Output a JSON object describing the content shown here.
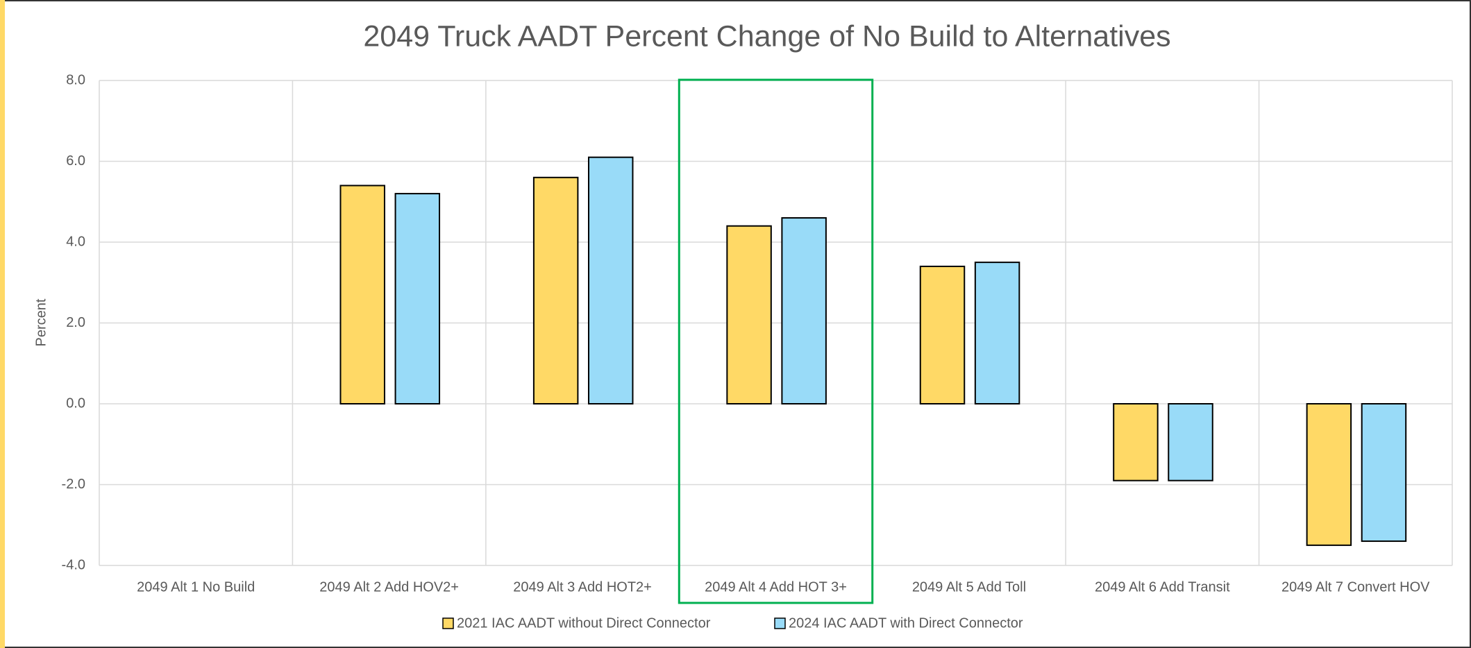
{
  "chart_data": {
    "type": "bar",
    "title": "2049 Truck AADT Percent Change of No Build to Alternatives",
    "y_label": "Percent",
    "categories": [
      "2049 Alt 1 No Build",
      "2049 Alt 2 Add HOV2+",
      "2049 Alt 3 Add HOT2+",
      "2049 Alt 4 Add HOT 3+",
      "2049 Alt 5 Add Toll",
      "2049 Alt 6 Add Transit",
      "2049 Alt 7 Convert HOV"
    ],
    "series": [
      {
        "name": "2021 IAC AADT without Direct Connector",
        "color": "#ffd966",
        "values": [
          0,
          5.4,
          5.6,
          4.4,
          3.4,
          -1.9,
          -3.5
        ]
      },
      {
        "name": "2024 IAC AADT with Direct Connector",
        "color": "#99dbf8",
        "values": [
          0,
          5.2,
          6.1,
          4.6,
          3.5,
          -1.9,
          -3.4
        ]
      }
    ],
    "ylim": [
      -4,
      8
    ],
    "yticks": [
      {
        "value": -4,
        "label": "-4.0"
      },
      {
        "value": -2,
        "label": "-2.0"
      },
      {
        "value": 0,
        "label": "0.0"
      },
      {
        "value": 2,
        "label": "2.0"
      },
      {
        "value": 4,
        "label": "4.0"
      },
      {
        "value": 6,
        "label": "6.0"
      },
      {
        "value": 8,
        "label": "8.0"
      }
    ],
    "grid": true,
    "legend": "bottom"
  }
}
